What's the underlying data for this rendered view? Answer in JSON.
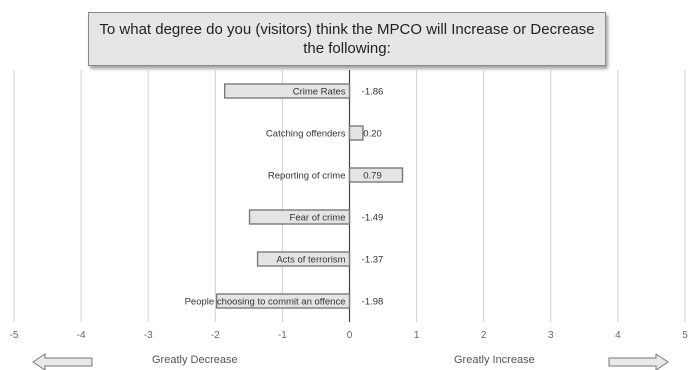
{
  "chart_data": {
    "type": "bar",
    "orientation": "horizontal",
    "title": "To what degree do you (visitors) think the MPCO will Increase or Decrease the following:",
    "categories": [
      "Crime Rates",
      "Catching offenders",
      "Reporting of crime",
      "Fear of crime",
      "Acts of terrorism",
      "People choosing to commit an offence"
    ],
    "values": [
      -1.86,
      0.2,
      0.79,
      -1.49,
      -1.37,
      -1.98
    ],
    "value_labels": [
      "-1.86",
      "0.20",
      "0.79",
      "-1.49",
      "-1.37",
      "-1.98"
    ],
    "xlim": [
      -5,
      5
    ],
    "xticks": [
      "-5",
      "-4",
      "-3",
      "-2",
      "-1",
      "0",
      "1",
      "2",
      "3",
      "4",
      "5"
    ],
    "xlabel_left": "Greatly Decrease",
    "xlabel_right": "Greatly Increase",
    "grid": "vertical",
    "legend": "none",
    "colors": {
      "bar_fill": "#e4e4e4",
      "bar_stroke": "#7a7a7a",
      "grid": "#cfcfcf",
      "title_bg": "#e6e6e6"
    }
  }
}
